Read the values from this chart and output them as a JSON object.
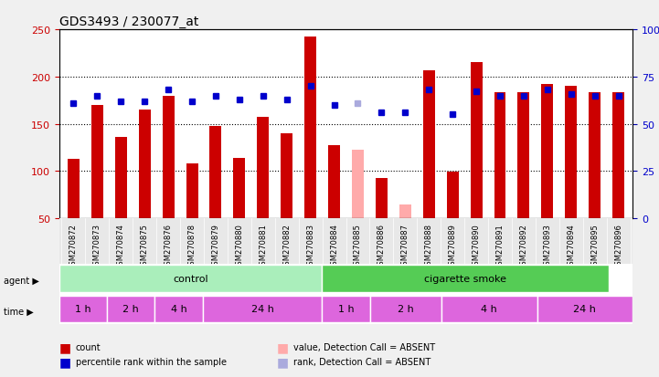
{
  "title": "GDS3493 / 230077_at",
  "samples": [
    "GSM270872",
    "GSM270873",
    "GSM270874",
    "GSM270875",
    "GSM270876",
    "GSM270878",
    "GSM270879",
    "GSM270880",
    "GSM270881",
    "GSM270882",
    "GSM270883",
    "GSM270884",
    "GSM270885",
    "GSM270886",
    "GSM270887",
    "GSM270888",
    "GSM270889",
    "GSM270890",
    "GSM270891",
    "GSM270892",
    "GSM270893",
    "GSM270894",
    "GSM270895",
    "GSM270896"
  ],
  "count_values": [
    113,
    170,
    136,
    165,
    180,
    108,
    148,
    114,
    157,
    140,
    242,
    127,
    123,
    93,
    65,
    207,
    99,
    215,
    183,
    183,
    192,
    190,
    183,
    183
  ],
  "count_absent": [
    false,
    false,
    false,
    false,
    false,
    false,
    false,
    false,
    false,
    false,
    false,
    false,
    true,
    false,
    true,
    false,
    false,
    false,
    false,
    false,
    false,
    false,
    false,
    false
  ],
  "rank_values": [
    61,
    65,
    62,
    62,
    68,
    62,
    65,
    63,
    65,
    63,
    70,
    60,
    61,
    56,
    56,
    68,
    55,
    67,
    65,
    65,
    68,
    66,
    65,
    65
  ],
  "rank_absent": [
    false,
    false,
    false,
    false,
    false,
    false,
    false,
    false,
    false,
    false,
    false,
    false,
    true,
    false,
    false,
    false,
    false,
    false,
    false,
    false,
    false,
    false,
    false,
    false
  ],
  "ylim_left": [
    50,
    250
  ],
  "ylim_right": [
    0,
    100
  ],
  "yticks_left": [
    50,
    100,
    150,
    200,
    250
  ],
  "yticks_right": [
    0,
    25,
    50,
    75,
    100
  ],
  "bar_color": "#cc0000",
  "bar_absent_color": "#ffaaaa",
  "rank_color": "#0000cc",
  "rank_absent_color": "#aaaadd",
  "agent_groups": [
    {
      "label": "control",
      "start": 0,
      "end": 11,
      "color": "#99ee99"
    },
    {
      "label": "cigarette smoke",
      "start": 11,
      "end": 23,
      "color": "#55cc55"
    }
  ],
  "time_groups": [
    {
      "label": "1 h",
      "start": 0,
      "end": 2,
      "color": "#dd66dd"
    },
    {
      "label": "2 h",
      "start": 2,
      "end": 4,
      "color": "#dd66dd"
    },
    {
      "label": "4 h",
      "start": 4,
      "end": 6,
      "color": "#dd66dd"
    },
    {
      "label": "24 h",
      "start": 6,
      "end": 11,
      "color": "#dd66dd"
    },
    {
      "label": "1 h",
      "start": 11,
      "end": 13,
      "color": "#dd66dd"
    },
    {
      "label": "2 h",
      "start": 13,
      "end": 16,
      "color": "#dd66dd"
    },
    {
      "label": "4 h",
      "start": 16,
      "end": 20,
      "color": "#dd66dd"
    },
    {
      "label": "24 h",
      "start": 20,
      "end": 24,
      "color": "#dd66dd"
    }
  ],
  "legend_items": [
    {
      "label": "count",
      "color": "#cc0000",
      "marker": "s"
    },
    {
      "label": "percentile rank within the sample",
      "color": "#0000cc",
      "marker": "s"
    },
    {
      "label": "value, Detection Call = ABSENT",
      "color": "#ffaaaa",
      "marker": "s"
    },
    {
      "label": "rank, Detection Call = ABSENT",
      "color": "#aaaadd",
      "marker": "s"
    }
  ],
  "bg_color": "#e8e8e8",
  "plot_bg": "#ffffff"
}
